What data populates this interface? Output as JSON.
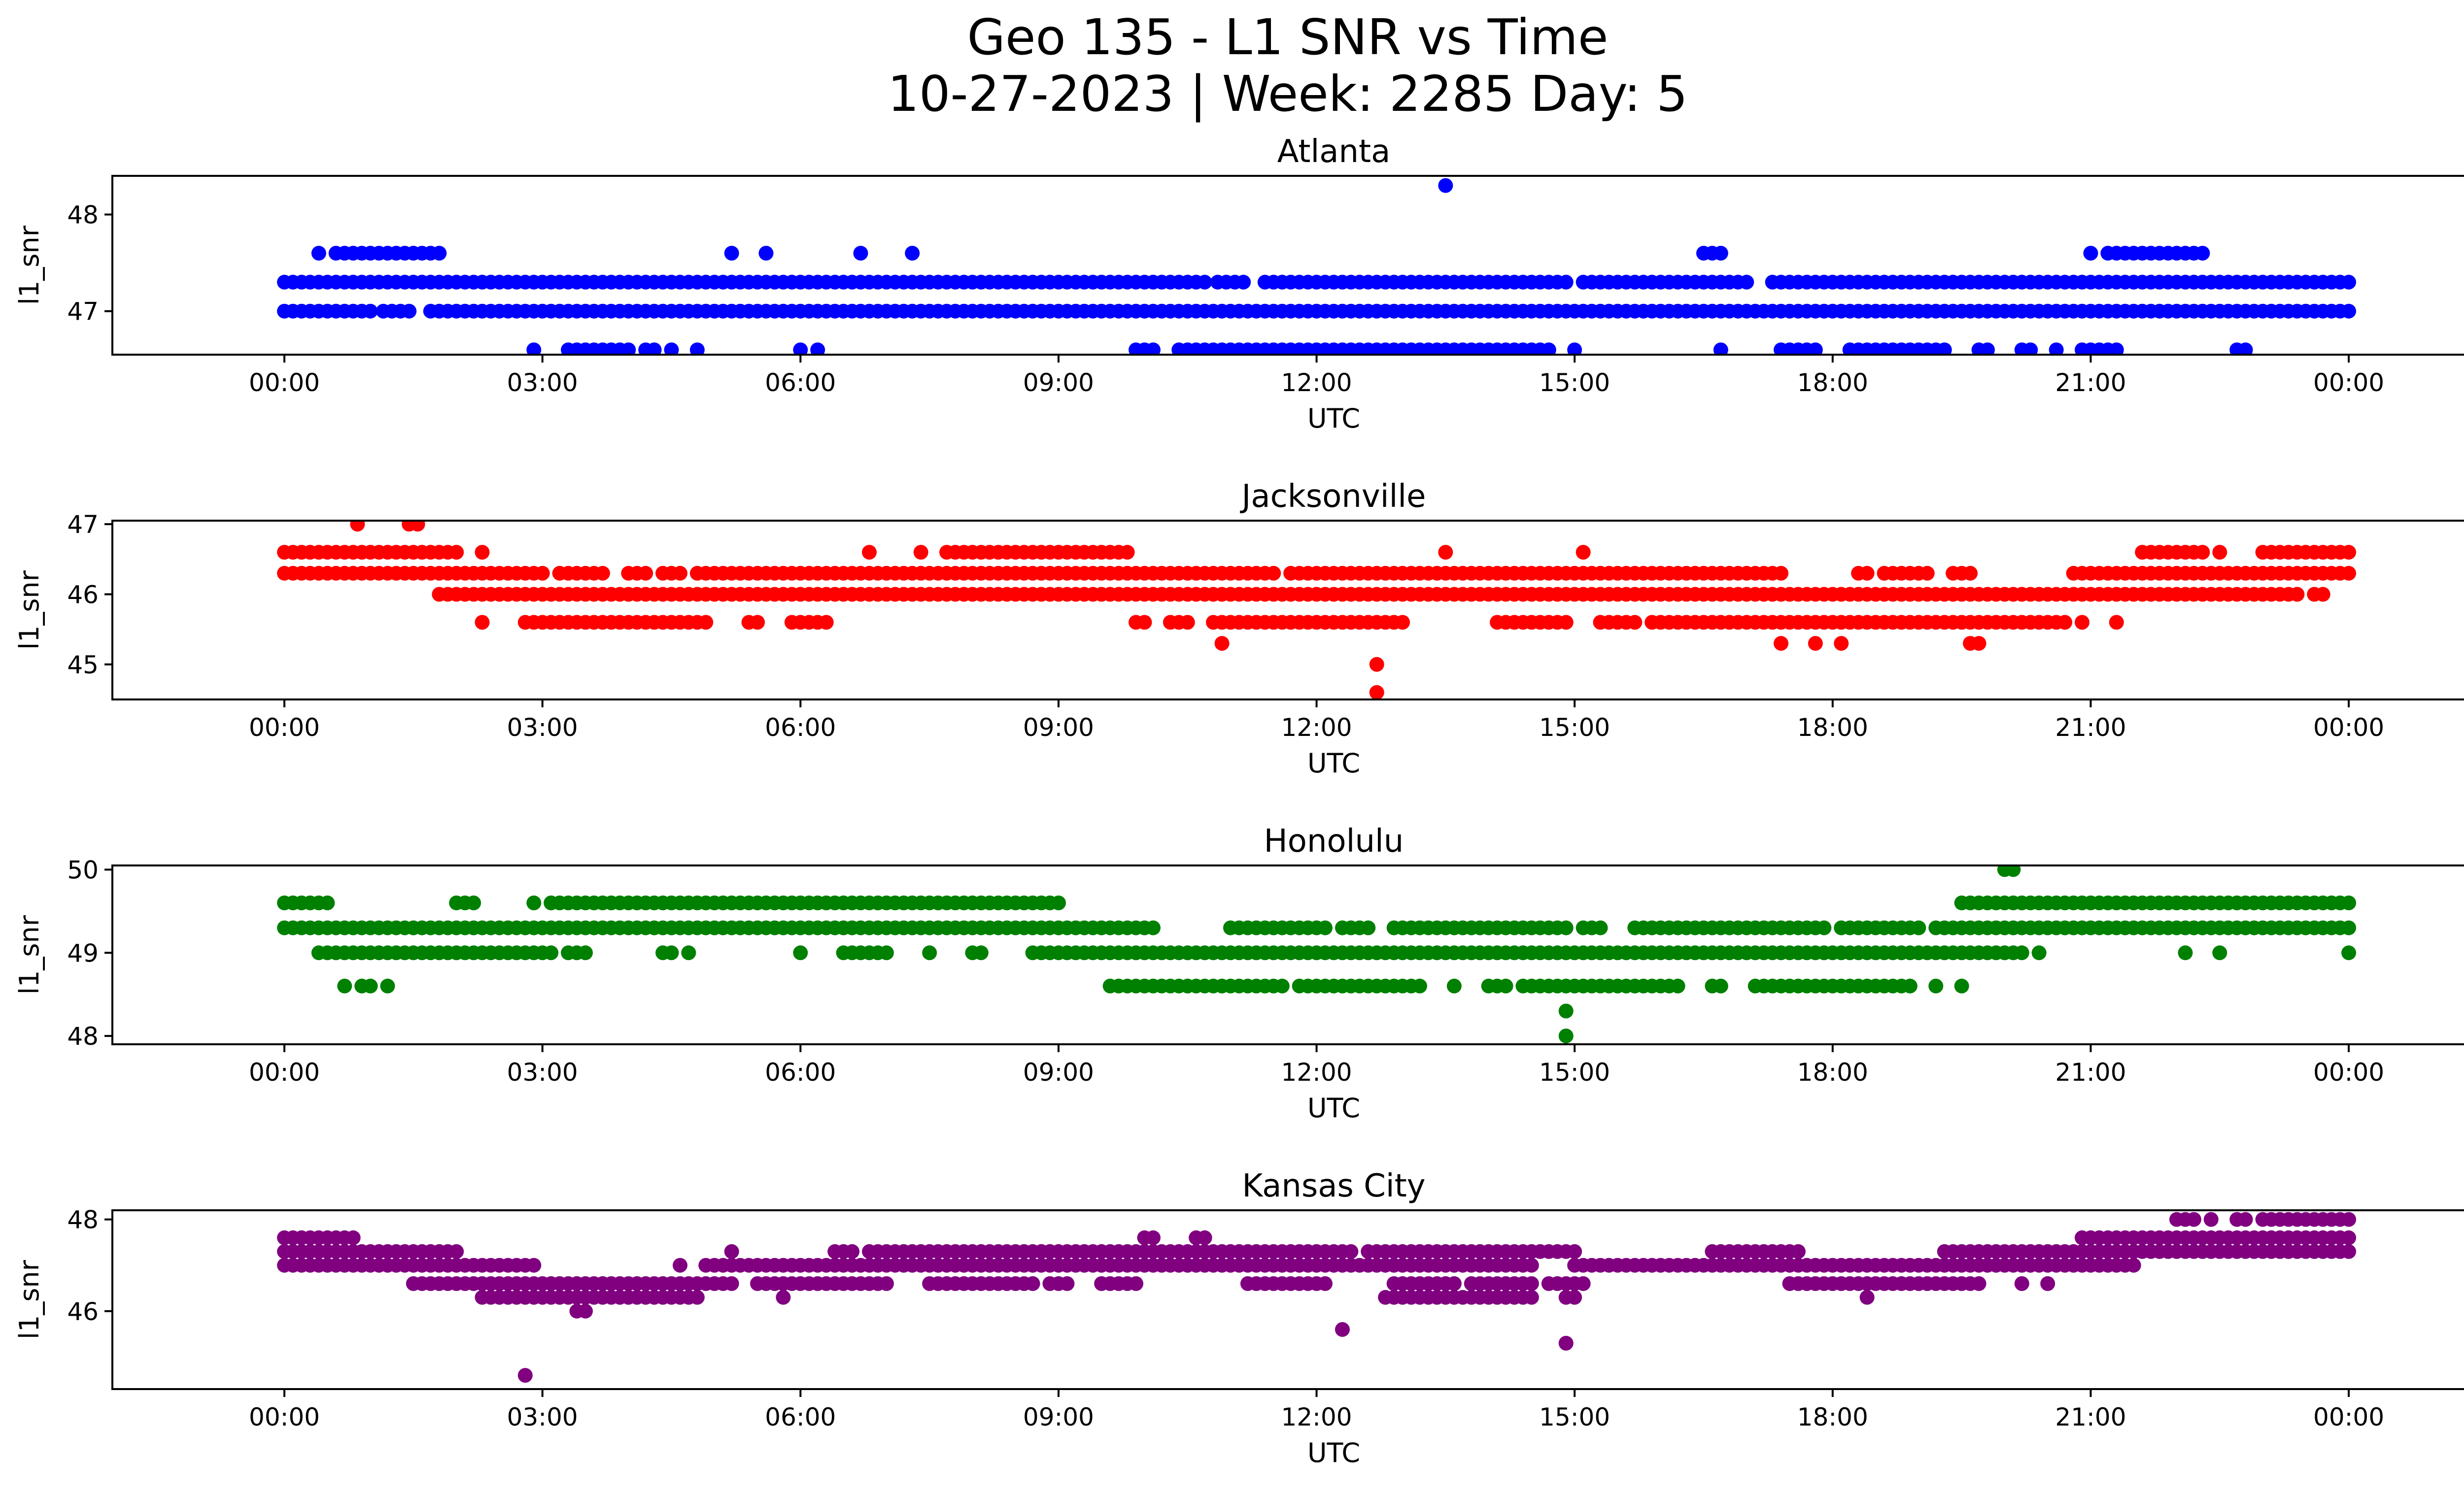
{
  "title_line1": "Geo 135 - L1 SNR vs Time",
  "title_line2": "10-27-2023 | Week: 2285 Day: 5",
  "chart_data": [
    {
      "type": "scatter",
      "title": "Atlanta",
      "xlabel": "UTC",
      "ylabel": "l1_snr",
      "color": "#0000ff",
      "xlim": [
        -2.0,
        26.4
      ],
      "ylim": [
        46.55,
        48.4
      ],
      "yticks": [
        47,
        48
      ],
      "xticks": [
        "00:00",
        "03:00",
        "06:00",
        "09:00",
        "12:00",
        "15:00",
        "18:00",
        "21:00",
        "00:00"
      ],
      "levels": [
        {
          "y": 47.0,
          "x": [
            [
              0.0,
              1.0
            ],
            [
              1.15,
              1.5
            ],
            [
              1.7,
              24.0
            ]
          ]
        },
        {
          "y": 47.3,
          "x": [
            [
              0.0,
              10.7
            ],
            [
              10.85,
              11.2
            ],
            [
              11.4,
              12.2
            ],
            [
              12.3,
              14.9
            ],
            [
              15.1,
              17.0
            ],
            [
              17.3,
              24.0
            ]
          ]
        },
        {
          "y": 47.6,
          "x": [
            [
              0.4,
              0.4
            ],
            [
              0.6,
              1.3
            ],
            [
              1.4,
              1.8
            ],
            [
              5.2,
              5.2
            ],
            [
              5.6,
              5.6
            ],
            [
              6.7,
              6.7
            ],
            [
              7.3,
              7.3
            ],
            [
              16.5,
              16.7
            ],
            [
              21.0,
              21.0
            ],
            [
              21.2,
              22.2
            ],
            [
              22.3,
              22.3
            ]
          ]
        },
        {
          "y": 46.6,
          "x": [
            [
              2.9,
              2.9
            ],
            [
              3.3,
              4.0
            ],
            [
              4.2,
              4.3
            ],
            [
              4.5,
              4.5
            ],
            [
              4.8,
              4.8
            ],
            [
              6.0,
              6.0
            ],
            [
              6.2,
              6.2
            ],
            [
              9.9,
              10.1
            ],
            [
              10.4,
              10.5
            ],
            [
              10.6,
              13.0
            ],
            [
              13.1,
              14.7
            ],
            [
              15.0,
              15.0
            ],
            [
              16.7,
              16.7
            ],
            [
              17.4,
              17.8
            ],
            [
              18.2,
              19.3
            ],
            [
              19.7,
              19.8
            ],
            [
              20.2,
              20.3
            ],
            [
              20.6,
              20.6
            ],
            [
              20.9,
              21.0
            ],
            [
              21.1,
              21.3
            ],
            [
              22.7,
              22.8
            ]
          ]
        },
        {
          "y": 48.3,
          "x": [
            [
              13.5,
              13.5
            ]
          ]
        }
      ]
    },
    {
      "type": "scatter",
      "title": "Jacksonville",
      "xlabel": "UTC",
      "ylabel": "l1_snr",
      "color": "#ff0000",
      "xlim": [
        -2.0,
        26.4
      ],
      "ylim": [
        44.5,
        47.05
      ],
      "yticks": [
        45,
        46,
        47
      ],
      "xticks": [
        "00:00",
        "03:00",
        "06:00",
        "09:00",
        "12:00",
        "15:00",
        "18:00",
        "21:00",
        "00:00"
      ],
      "levels": [
        {
          "y": 46.6,
          "x": [
            [
              0.0,
              2.0
            ],
            [
              2.3,
              2.3
            ],
            [
              6.8,
              6.8
            ],
            [
              7.4,
              7.4
            ],
            [
              7.7,
              8.2
            ],
            [
              8.3,
              9.8
            ],
            [
              13.5,
              13.5
            ],
            [
              15.1,
              15.1
            ],
            [
              21.6,
              21.8
            ],
            [
              21.9,
              22.3
            ],
            [
              22.5,
              22.5
            ],
            [
              23.0,
              24.0
            ]
          ]
        },
        {
          "y": 46.3,
          "x": [
            [
              0.0,
              3.0
            ],
            [
              3.2,
              3.3
            ],
            [
              3.4,
              3.7
            ],
            [
              4.0,
              4.2
            ],
            [
              4.4,
              4.6
            ],
            [
              4.8,
              11.5
            ],
            [
              11.7,
              14.1
            ],
            [
              14.2,
              17.2
            ],
            [
              17.3,
              17.4
            ],
            [
              18.3,
              18.4
            ],
            [
              18.6,
              19.1
            ],
            [
              19.4,
              19.6
            ],
            [
              20.8,
              24.0
            ]
          ]
        },
        {
          "y": 46.0,
          "x": [
            [
              1.8,
              23.4
            ],
            [
              23.6,
              23.7
            ]
          ]
        },
        {
          "y": 45.6,
          "x": [
            [
              2.3,
              2.3
            ],
            [
              2.8,
              4.9
            ],
            [
              5.4,
              5.5
            ],
            [
              5.9,
              6.2
            ],
            [
              6.3,
              6.3
            ],
            [
              9.9,
              10.0
            ],
            [
              10.3,
              10.5
            ],
            [
              10.8,
              13.0
            ],
            [
              14.1,
              14.9
            ],
            [
              15.3,
              15.7
            ],
            [
              15.9,
              20.7
            ],
            [
              20.9,
              20.9
            ],
            [
              21.3,
              21.3
            ]
          ]
        },
        {
          "y": 45.3,
          "x": [
            [
              10.9,
              10.9
            ],
            [
              17.4,
              17.4
            ],
            [
              17.8,
              17.8
            ],
            [
              18.1,
              18.1
            ],
            [
              19.6,
              19.7
            ]
          ]
        },
        {
          "y": 45.0,
          "x": [
            [
              12.7,
              12.7
            ]
          ]
        },
        {
          "y": 44.6,
          "x": [
            [
              12.7,
              12.7
            ]
          ]
        },
        {
          "y": 47.0,
          "x": [
            [
              0.85,
              0.85
            ],
            [
              1.45,
              1.6
            ]
          ]
        }
      ]
    },
    {
      "type": "scatter",
      "title": "Honolulu",
      "xlabel": "UTC",
      "ylabel": "l1_snr",
      "color": "#008000",
      "xlim": [
        -2.0,
        26.4
      ],
      "ylim": [
        47.9,
        50.05
      ],
      "yticks": [
        48,
        49,
        50
      ],
      "xticks": [
        "00:00",
        "03:00",
        "06:00",
        "09:00",
        "12:00",
        "15:00",
        "18:00",
        "21:00",
        "00:00"
      ],
      "levels": [
        {
          "y": 50.0,
          "x": [
            [
              20.0,
              20.1
            ]
          ]
        },
        {
          "y": 49.6,
          "x": [
            [
              0.0,
              0.5
            ],
            [
              2.0,
              2.2
            ],
            [
              2.9,
              2.9
            ],
            [
              3.1,
              6.7
            ],
            [
              6.8,
              9.0
            ],
            [
              19.5,
              24.0
            ]
          ]
        },
        {
          "y": 49.3,
          "x": [
            [
              0.0,
              10.1
            ],
            [
              11.0,
              12.1
            ],
            [
              12.3,
              12.4
            ],
            [
              12.5,
              12.6
            ],
            [
              12.9,
              13.6
            ],
            [
              13.7,
              14.9
            ],
            [
              15.1,
              15.3
            ],
            [
              15.7,
              17.5
            ],
            [
              17.6,
              17.9
            ],
            [
              18.1,
              19.0
            ],
            [
              19.2,
              24.0
            ]
          ]
        },
        {
          "y": 49.0,
          "x": [
            [
              0.4,
              3.1
            ],
            [
              3.3,
              3.5
            ],
            [
              4.4,
              4.5
            ],
            [
              4.7,
              4.7
            ],
            [
              6.0,
              6.0
            ],
            [
              6.5,
              7.0
            ],
            [
              7.5,
              7.5
            ],
            [
              8.0,
              8.1
            ],
            [
              8.7,
              20.2
            ],
            [
              20.4,
              20.4
            ],
            [
              22.1,
              22.1
            ],
            [
              22.5,
              22.5
            ],
            [
              24.0,
              24.0
            ]
          ]
        },
        {
          "y": 48.6,
          "x": [
            [
              0.7,
              0.7
            ],
            [
              0.9,
              1.0
            ],
            [
              1.2,
              1.2
            ],
            [
              9.6,
              11.3
            ],
            [
              11.4,
              11.6
            ],
            [
              11.8,
              12.7
            ],
            [
              12.8,
              13.2
            ],
            [
              13.6,
              13.6
            ],
            [
              14.0,
              14.2
            ],
            [
              14.4,
              16.2
            ],
            [
              16.6,
              16.7
            ],
            [
              17.1,
              18.9
            ],
            [
              19.2,
              19.2
            ],
            [
              19.5,
              19.5
            ]
          ]
        },
        {
          "y": 48.3,
          "x": [
            [
              14.9,
              14.9
            ]
          ]
        },
        {
          "y": 48.0,
          "x": [
            [
              14.9,
              14.9
            ]
          ]
        }
      ]
    },
    {
      "type": "scatter",
      "title": "Kansas City",
      "xlabel": "UTC",
      "ylabel": "l1_snr",
      "color": "#800080",
      "xlim": [
        -2.0,
        26.4
      ],
      "ylim": [
        44.3,
        48.2
      ],
      "yticks": [
        46,
        48
      ],
      "xticks": [
        "00:00",
        "03:00",
        "06:00",
        "09:00",
        "12:00",
        "15:00",
        "18:00",
        "21:00",
        "00:00"
      ],
      "levels": [
        {
          "y": 48.0,
          "x": [
            [
              22.0,
              22.2
            ],
            [
              22.4,
              22.4
            ],
            [
              22.7,
              22.8
            ],
            [
              23.0,
              24.0
            ]
          ]
        },
        {
          "y": 47.6,
          "x": [
            [
              0.0,
              0.8
            ],
            [
              10.0,
              10.1
            ],
            [
              10.6,
              10.7
            ],
            [
              20.9,
              24.0
            ]
          ]
        },
        {
          "y": 47.3,
          "x": [
            [
              0.0,
              2.0
            ],
            [
              5.2,
              5.2
            ],
            [
              6.4,
              6.6
            ],
            [
              6.8,
              8.9
            ],
            [
              8.8,
              12.4
            ],
            [
              12.6,
              14.7
            ],
            [
              14.8,
              15.0
            ],
            [
              16.6,
              16.9
            ],
            [
              17.0,
              17.6
            ],
            [
              19.3,
              24.0
            ],
            [
              23.3,
              23.3
            ]
          ]
        },
        {
          "y": 47.0,
          "x": [
            [
              0.0,
              2.9
            ],
            [
              4.6,
              4.6
            ],
            [
              4.9,
              14.5
            ],
            [
              15.0,
              21.5
            ]
          ]
        },
        {
          "y": 46.6,
          "x": [
            [
              1.5,
              2.7
            ],
            [
              2.8,
              4.8
            ],
            [
              4.9,
              5.2
            ],
            [
              5.5,
              7.0
            ],
            [
              7.5,
              8.7
            ],
            [
              8.9,
              9.1
            ],
            [
              9.5,
              9.9
            ],
            [
              11.2,
              11.5
            ],
            [
              11.6,
              12.1
            ],
            [
              12.9,
              13.6
            ],
            [
              13.8,
              14.5
            ],
            [
              14.7,
              15.1
            ],
            [
              17.5,
              19.7
            ],
            [
              20.2,
              20.2
            ],
            [
              20.5,
              20.5
            ]
          ]
        },
        {
          "y": 46.3,
          "x": [
            [
              2.3,
              4.8
            ],
            [
              5.8,
              5.8
            ],
            [
              12.8,
              14.5
            ],
            [
              14.9,
              15.0
            ],
            [
              18.4,
              18.4
            ]
          ]
        },
        {
          "y": 46.0,
          "x": [
            [
              3.4,
              3.5
            ]
          ]
        },
        {
          "y": 45.6,
          "x": [
            [
              12.3,
              12.3
            ]
          ]
        },
        {
          "y": 45.3,
          "x": [
            [
              14.9,
              14.9
            ]
          ]
        },
        {
          "y": 44.6,
          "x": [
            [
              2.8,
              2.8
            ]
          ]
        }
      ]
    }
  ]
}
